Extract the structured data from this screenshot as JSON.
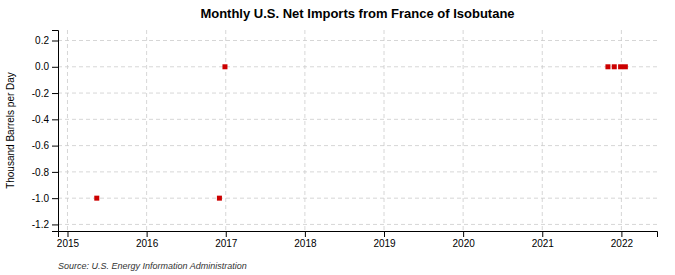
{
  "chart_data": {
    "type": "scatter",
    "title": "Monthly U.S. Net Imports from France of Isobutane",
    "ylabel": "Thousand Barrels per Day",
    "source": "Source: U.S. Energy Information Administration",
    "x": [
      2015.37,
      2016.92,
      2016.99,
      2021.83,
      2021.91,
      2021.99,
      2022.05
    ],
    "values": [
      -1.0,
      -1.0,
      0.0,
      0.0,
      0.0,
      0.0,
      0.0
    ],
    "color": "#cc0000",
    "marker": "square",
    "xlim": [
      2014.88,
      2022.45
    ],
    "ylim": [
      -1.25,
      0.28
    ],
    "xticks": [
      2015,
      2016,
      2017,
      2018,
      2019,
      2020,
      2021,
      2022
    ],
    "yticks": [
      -1.2,
      {
        "value": -1.0,
        "label": "-1.0"
      },
      -0.8,
      -0.6,
      -0.4,
      -0.2,
      {
        "value": 0.0,
        "label": "0.0"
      },
      0.2
    ],
    "grid": true
  }
}
